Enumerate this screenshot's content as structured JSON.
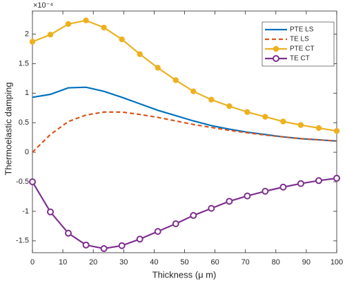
{
  "chart_data": {
    "type": "line",
    "x_label": "Thickness (μ m)",
    "y_label": "Thermoelastic damping",
    "y_multiplier": "×10⁻⁴",
    "x": [
      0,
      5.9,
      11.8,
      17.6,
      23.5,
      29.4,
      35.3,
      41.2,
      47.1,
      52.9,
      58.8,
      64.7,
      70.6,
      76.5,
      82.4,
      88.2,
      94.1,
      100
    ],
    "series": [
      {
        "name": "PTE LS",
        "color": "#0072bd",
        "dashed": false,
        "marker": "none",
        "values": [
          0.93,
          0.98,
          1.09,
          1.1,
          1.03,
          0.93,
          0.82,
          0.71,
          0.62,
          0.53,
          0.45,
          0.39,
          0.34,
          0.3,
          0.26,
          0.23,
          0.21,
          0.19
        ]
      },
      {
        "name": "TE LS",
        "color": "#d95319",
        "dashed": true,
        "marker": "none",
        "values": [
          0.0,
          0.3,
          0.52,
          0.63,
          0.68,
          0.68,
          0.64,
          0.59,
          0.53,
          0.47,
          0.42,
          0.37,
          0.33,
          0.29,
          0.26,
          0.23,
          0.21,
          0.19
        ]
      },
      {
        "name": "PTE CT",
        "color": "#edb120",
        "dashed": false,
        "marker": "filled",
        "values": [
          1.87,
          1.99,
          2.17,
          2.23,
          2.11,
          1.91,
          1.66,
          1.43,
          1.22,
          1.03,
          0.89,
          0.78,
          0.68,
          0.6,
          0.52,
          0.46,
          0.41,
          0.36
        ]
      },
      {
        "name": "TE CT",
        "color": "#7e2f8e",
        "dashed": false,
        "marker": "open",
        "values": [
          -0.5,
          -1.01,
          -1.37,
          -1.57,
          -1.63,
          -1.58,
          -1.47,
          -1.34,
          -1.21,
          -1.07,
          -0.95,
          -0.83,
          -0.74,
          -0.66,
          -0.59,
          -0.53,
          -0.48,
          -0.44
        ]
      }
    ],
    "xlim": [
      0,
      100
    ],
    "xticks": [
      0,
      10,
      20,
      30,
      40,
      50,
      60,
      70,
      80,
      90,
      100
    ],
    "ylim": [
      -1.7,
      2.39
    ],
    "yticks": [
      -1.5,
      -1,
      -0.5,
      0,
      0.5,
      1,
      1.5,
      2
    ],
    "grid": false,
    "legend": "top-right"
  }
}
